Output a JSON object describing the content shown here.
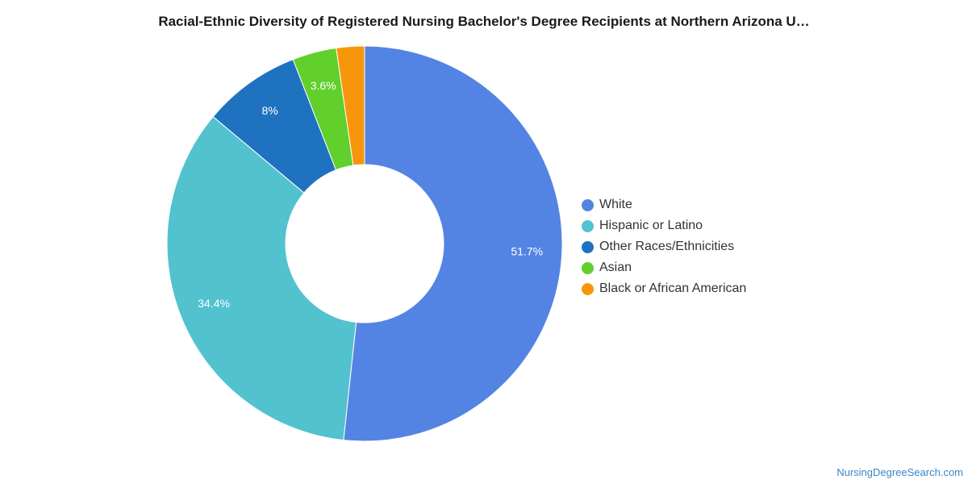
{
  "chart_data": {
    "type": "pie",
    "variant": "donut",
    "title": "Racial-Ethnic Diversity of Registered Nursing Bachelor's Degree Recipients at Northern Arizona U…",
    "slices": [
      {
        "label": "White",
        "value": 51.7,
        "display": "51.7%",
        "color": "#5484e3"
      },
      {
        "label": "Hispanic or Latino",
        "value": 34.4,
        "display": "34.4%",
        "color": "#52c2cf"
      },
      {
        "label": "Other Races/Ethnicities",
        "value": 8.0,
        "display": "8%",
        "color": "#1f72c0"
      },
      {
        "label": "Asian",
        "value": 3.6,
        "display": "3.6%",
        "color": "#61cf2c"
      },
      {
        "label": "Black or African American",
        "value": 2.3,
        "display": "",
        "color": "#f7960b"
      }
    ],
    "legend_position": "right"
  },
  "watermark": "NursingDegreeSearch.com"
}
